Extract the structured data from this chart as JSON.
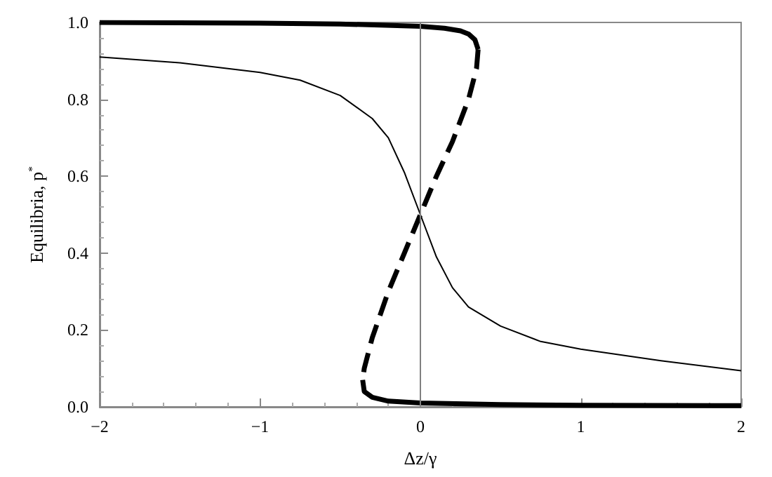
{
  "chart_data": {
    "type": "line",
    "xlabel": "Δz/γ",
    "ylabel": "Equilibria, p$^{*}$",
    "xlim": [
      -2,
      2
    ],
    "ylim": [
      0,
      1
    ],
    "xticks": [
      {
        "value": -2,
        "label": "−2"
      },
      {
        "value": -1,
        "label": "−1"
      },
      0,
      1,
      2
    ],
    "yticks": [
      {
        "value": 0,
        "label": "0.0"
      },
      0.2,
      0.4,
      0.6,
      0.8,
      {
        "value": 1,
        "label": "1.0"
      }
    ],
    "grid": false,
    "marker": "none",
    "ref_lines": [
      {
        "axis": "x",
        "value": 0,
        "color": "#808080"
      }
    ],
    "series": [
      {
        "color": "#000000",
        "line_style": "solid",
        "x": [
          -2,
          -1.5,
          -1,
          -0.75,
          -0.5,
          -0.3,
          -0.2,
          -0.1,
          0,
          0.1,
          0.2,
          0.3,
          0.5,
          0.75,
          1,
          1.5,
          2
        ],
        "values": [
          0.91,
          0.895,
          0.87,
          0.85,
          0.81,
          0.75,
          0.7,
          0.61,
          0.5,
          0.39,
          0.31,
          0.26,
          0.21,
          0.17,
          0.15,
          0.12,
          0.094
        ]
      },
      {
        "color": "#000000",
        "line_style": "solid",
        "x": [
          -2,
          -1,
          -0.5,
          0,
          0.15,
          0.25,
          0.3,
          0.34,
          0.36
        ],
        "values": [
          1.0,
          0.998,
          0.996,
          0.99,
          0.985,
          0.978,
          0.97,
          0.955,
          0.93
        ]
      },
      {
        "color": "#000000",
        "line_style": "dashed",
        "x": [
          0.36,
          0.35,
          0.3,
          0.2,
          0.1,
          0,
          -0.1,
          -0.2,
          -0.3,
          -0.35,
          -0.36
        ],
        "values": [
          0.93,
          0.88,
          0.8,
          0.69,
          0.6,
          0.5,
          0.4,
          0.3,
          0.18,
          0.1,
          0.07
        ]
      },
      {
        "color": "#000000",
        "line_style": "solid",
        "x": [
          -0.36,
          -0.35,
          -0.3,
          -0.2,
          0,
          0.5,
          1,
          2
        ],
        "values": [
          0.07,
          0.04,
          0.025,
          0.015,
          0.01,
          0.006,
          0.004,
          0.003
        ]
      }
    ]
  }
}
